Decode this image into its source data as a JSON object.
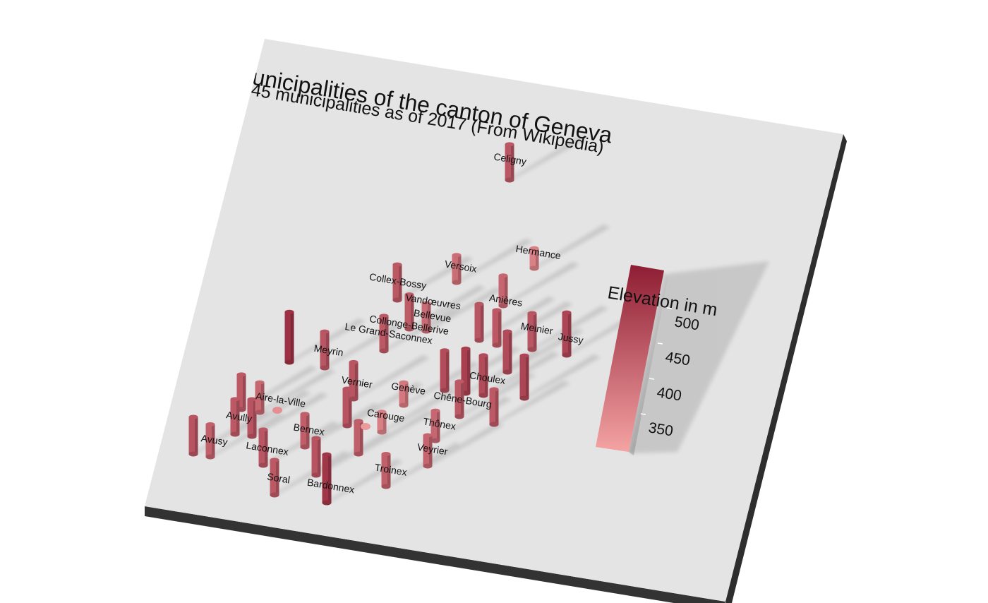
{
  "chart_data": {
    "type": "scatter",
    "title": "Municipalities of the canton of Geneva",
    "subtitle": "45 municipalities as of 2017 (From Wikipedia)",
    "legend_title": "Elevation in m",
    "legend_ticks": [
      350,
      400,
      450,
      500
    ],
    "color_range": [
      330,
      530
    ],
    "colors": {
      "low": "#f4a3a3",
      "high": "#8e1d33",
      "plane": "#e4e4e4",
      "edge": "#333333"
    },
    "points": [
      {
        "name": "Celigny",
        "elevation": 443
      },
      {
        "name": "Hermance",
        "elevation": 381
      },
      {
        "name": "Versoix",
        "elevation": 410
      },
      {
        "name": "Collex-Bossy",
        "elevation": 442
      },
      {
        "name": "Anières",
        "elevation": 421
      },
      {
        "name": "Bellevue",
        "elevation": 412
      },
      {
        "name": "Le Grand-Saconnex",
        "elevation": 440
      },
      {
        "name": "Collonge-Bellerive",
        "elevation": 426
      },
      {
        "name": "Vandœuvres",
        "elevation": 470
      },
      {
        "name": "Jussy",
        "elevation": 470
      },
      {
        "name": "Meinier",
        "elevation": 445
      },
      {
        "name": "Meyrin",
        "elevation": 445
      },
      {
        "name": "Vernier",
        "elevation": 447
      },
      {
        "name": "Genève",
        "elevation": 392
      },
      {
        "name": "Chêne-Bourg",
        "elevation": 440
      },
      {
        "name": "Choulex",
        "elevation": 460
      },
      {
        "name": "Aire-la-Ville",
        "elevation": 420
      },
      {
        "name": "Avully",
        "elevation": 440
      },
      {
        "name": "Carouge",
        "elevation": 382
      },
      {
        "name": "Thônex",
        "elevation": 420
      },
      {
        "name": "Bernex",
        "elevation": 432
      },
      {
        "name": "Avusy",
        "elevation": 430
      },
      {
        "name": "Laconnex",
        "elevation": 443
      },
      {
        "name": "Veyrier",
        "elevation": 423
      },
      {
        "name": "Troinex",
        "elevation": 430
      },
      {
        "name": "Soral",
        "elevation": 440
      },
      {
        "name": "Bardonnex",
        "elevation": 492
      }
    ]
  }
}
